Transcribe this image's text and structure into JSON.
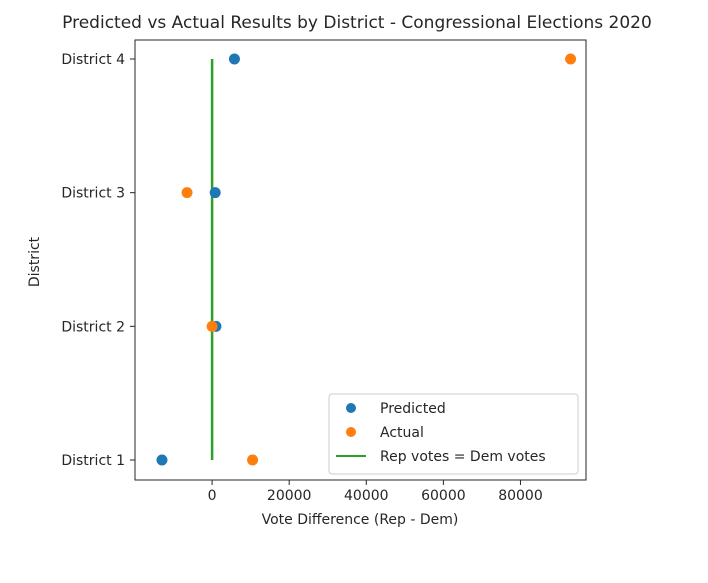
{
  "chart_data": {
    "type": "scatter",
    "title": "Predicted vs Actual Results by District - Congressional Elections 2020",
    "xlabel": "Vote Difference (Rep - Dem)",
    "ylabel": "District",
    "categories": [
      "District 1",
      "District 2",
      "District 3",
      "District 4"
    ],
    "xlim": [
      -20000,
      97000
    ],
    "xticks": [
      0,
      20000,
      40000,
      60000,
      80000
    ],
    "xtick_labels": [
      "0",
      "20000",
      "40000",
      "60000",
      "80000"
    ],
    "series": [
      {
        "name": "Predicted",
        "color": "#1f77b4",
        "values": [
          -13000,
          1000,
          800,
          5800
        ]
      },
      {
        "name": "Actual",
        "color": "#ff7f0e",
        "values": [
          10500,
          0,
          -6500,
          93000
        ]
      }
    ],
    "reference_line": {
      "name": "Rep votes = Dem votes",
      "color": "#2ca02c",
      "x": 0
    },
    "legend_position": "lower-right",
    "grid": false
  }
}
